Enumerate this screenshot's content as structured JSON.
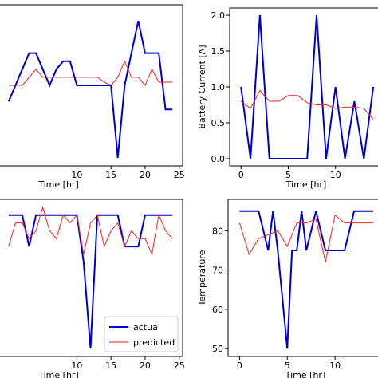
{
  "colors": {
    "actual": "#0000cc",
    "predicted": "#ee2222",
    "axis": "#000000"
  },
  "chart_data": [
    {
      "type": "line",
      "xlabel": "Time [hr]",
      "ylabel": "",
      "xlim": [
        -1.5,
        25.5
      ],
      "ylim": [
        0,
        10
      ],
      "xticks": [
        10,
        15,
        20,
        25
      ],
      "xtick_labels": [
        "10",
        "15",
        "20",
        "25"
      ],
      "yticks": [],
      "ytick_labels": [],
      "grid": false,
      "series": [
        {
          "key": "actual",
          "x": [
            0,
            1,
            2,
            3,
            4,
            5,
            6,
            7,
            8,
            9,
            10,
            11,
            12,
            13,
            14,
            15,
            16,
            17,
            18,
            19,
            20,
            21,
            22,
            23,
            24
          ],
          "y": [
            4.0,
            5.0,
            6.0,
            7.0,
            7.0,
            6.0,
            5.0,
            6.0,
            6.5,
            6.5,
            5.0,
            5.0,
            5.0,
            5.0,
            5.0,
            5.0,
            0.5,
            5.0,
            7.0,
            9.0,
            7.0,
            7.0,
            7.0,
            3.5,
            3.5
          ]
        },
        {
          "key": "predicted",
          "x": [
            0,
            1,
            2,
            3,
            4,
            5,
            6,
            7,
            8,
            9,
            10,
            11,
            12,
            13,
            14,
            15,
            16,
            17,
            18,
            19,
            20,
            21,
            22,
            23,
            24
          ],
          "y": [
            5.0,
            5.0,
            5.0,
            5.5,
            6.0,
            5.5,
            5.5,
            5.5,
            5.5,
            5.5,
            5.5,
            5.5,
            5.5,
            5.5,
            5.2,
            5.0,
            5.5,
            6.5,
            5.5,
            5.5,
            5.0,
            6.0,
            5.2,
            5.2,
            5.2
          ]
        }
      ]
    },
    {
      "type": "line",
      "xlabel": "Time [hr]",
      "ylabel": "Battery Current [A]",
      "xlim": [
        -1.2,
        15.0
      ],
      "ylim": [
        -0.1,
        2.1
      ],
      "xticks": [
        0,
        5,
        10
      ],
      "xtick_labels": [
        "0",
        "5",
        "10"
      ],
      "yticks": [
        0.0,
        0.5,
        1.0,
        1.5,
        2.0
      ],
      "ytick_labels": [
        "0.0",
        "0.5",
        "1.0",
        "1.5",
        "2.0"
      ],
      "grid": false,
      "series": [
        {
          "key": "actual",
          "x": [
            0,
            1,
            2,
            3,
            4,
            5,
            6,
            7,
            8,
            9,
            10,
            11,
            12,
            13,
            14
          ],
          "y": [
            1.0,
            0.0,
            2.0,
            0.0,
            0.0,
            0.0,
            0.0,
            0.0,
            2.0,
            0.0,
            1.0,
            0.0,
            0.8,
            0.0,
            1.0
          ]
        },
        {
          "key": "predicted",
          "x": [
            0,
            1,
            2,
            3,
            4,
            5,
            6,
            7,
            8,
            9,
            10,
            11,
            12,
            13,
            14
          ],
          "y": [
            0.8,
            0.7,
            0.95,
            0.8,
            0.8,
            0.88,
            0.88,
            0.78,
            0.75,
            0.75,
            0.7,
            0.72,
            0.72,
            0.7,
            0.55
          ]
        }
      ]
    },
    {
      "type": "line",
      "xlabel": "Time [hr]",
      "ylabel": "",
      "xlim": [
        -1.5,
        25.5
      ],
      "ylim": [
        0,
        10
      ],
      "xticks": [
        10,
        15,
        20,
        25
      ],
      "xtick_labels": [
        "10",
        "15",
        "20",
        "25"
      ],
      "yticks": [],
      "ytick_labels": [],
      "legend": [
        "actual",
        "predicted"
      ],
      "legend_loc": "lower-right",
      "series": [
        {
          "key": "actual",
          "name": "actual",
          "x": [
            0,
            1,
            2,
            3,
            4,
            5,
            6,
            7,
            8,
            9,
            10,
            11,
            12,
            13,
            14,
            15,
            16,
            17,
            18,
            19,
            20,
            21,
            22,
            23,
            24
          ],
          "y": [
            9,
            9,
            9,
            7,
            9,
            9,
            9,
            9,
            9,
            9,
            9,
            6,
            0.5,
            9,
            9,
            9,
            9,
            7,
            7,
            7,
            9,
            9,
            9,
            9,
            9
          ]
        },
        {
          "key": "predicted",
          "name": "predicted",
          "x": [
            0,
            1,
            2,
            3,
            4,
            5,
            6,
            7,
            8,
            9,
            10,
            11,
            12,
            13,
            14,
            15,
            16,
            17,
            18,
            19,
            20,
            21,
            22,
            23,
            24
          ],
          "y": [
            7,
            8.5,
            8.5,
            7.5,
            8,
            9.5,
            8,
            7.5,
            9,
            8.5,
            9,
            6.5,
            8.5,
            9,
            7,
            8,
            8.5,
            7,
            8,
            7.5,
            7.5,
            6.5,
            9,
            8,
            7.5
          ]
        }
      ]
    },
    {
      "type": "line",
      "xlabel": "Time [hr]",
      "ylabel": "Temperature",
      "xlim": [
        -1.2,
        15.0
      ],
      "ylim": [
        48,
        88
      ],
      "xticks": [
        0,
        5,
        10
      ],
      "xtick_labels": [
        "0",
        "5",
        "10"
      ],
      "yticks": [
        50,
        60,
        70,
        80
      ],
      "ytick_labels": [
        "50",
        "60",
        "70",
        "80"
      ],
      "grid": false,
      "series": [
        {
          "key": "actual",
          "x": [
            0,
            1,
            2,
            3,
            3.5,
            4,
            5,
            5.5,
            6,
            6.5,
            7,
            8,
            9,
            10,
            11,
            12,
            13,
            14
          ],
          "y": [
            85,
            85,
            85,
            75,
            85,
            75,
            50,
            75,
            75,
            85,
            75,
            85,
            75,
            75,
            75,
            85,
            85,
            85
          ]
        },
        {
          "key": "predicted",
          "x": [
            0,
            1,
            2,
            3,
            4,
            5,
            6,
            7,
            8,
            9,
            10,
            11,
            12,
            13,
            14
          ],
          "y": [
            82,
            74,
            78,
            79,
            80,
            76,
            82,
            82,
            83,
            72,
            84,
            82,
            82,
            82,
            82
          ]
        }
      ]
    }
  ]
}
